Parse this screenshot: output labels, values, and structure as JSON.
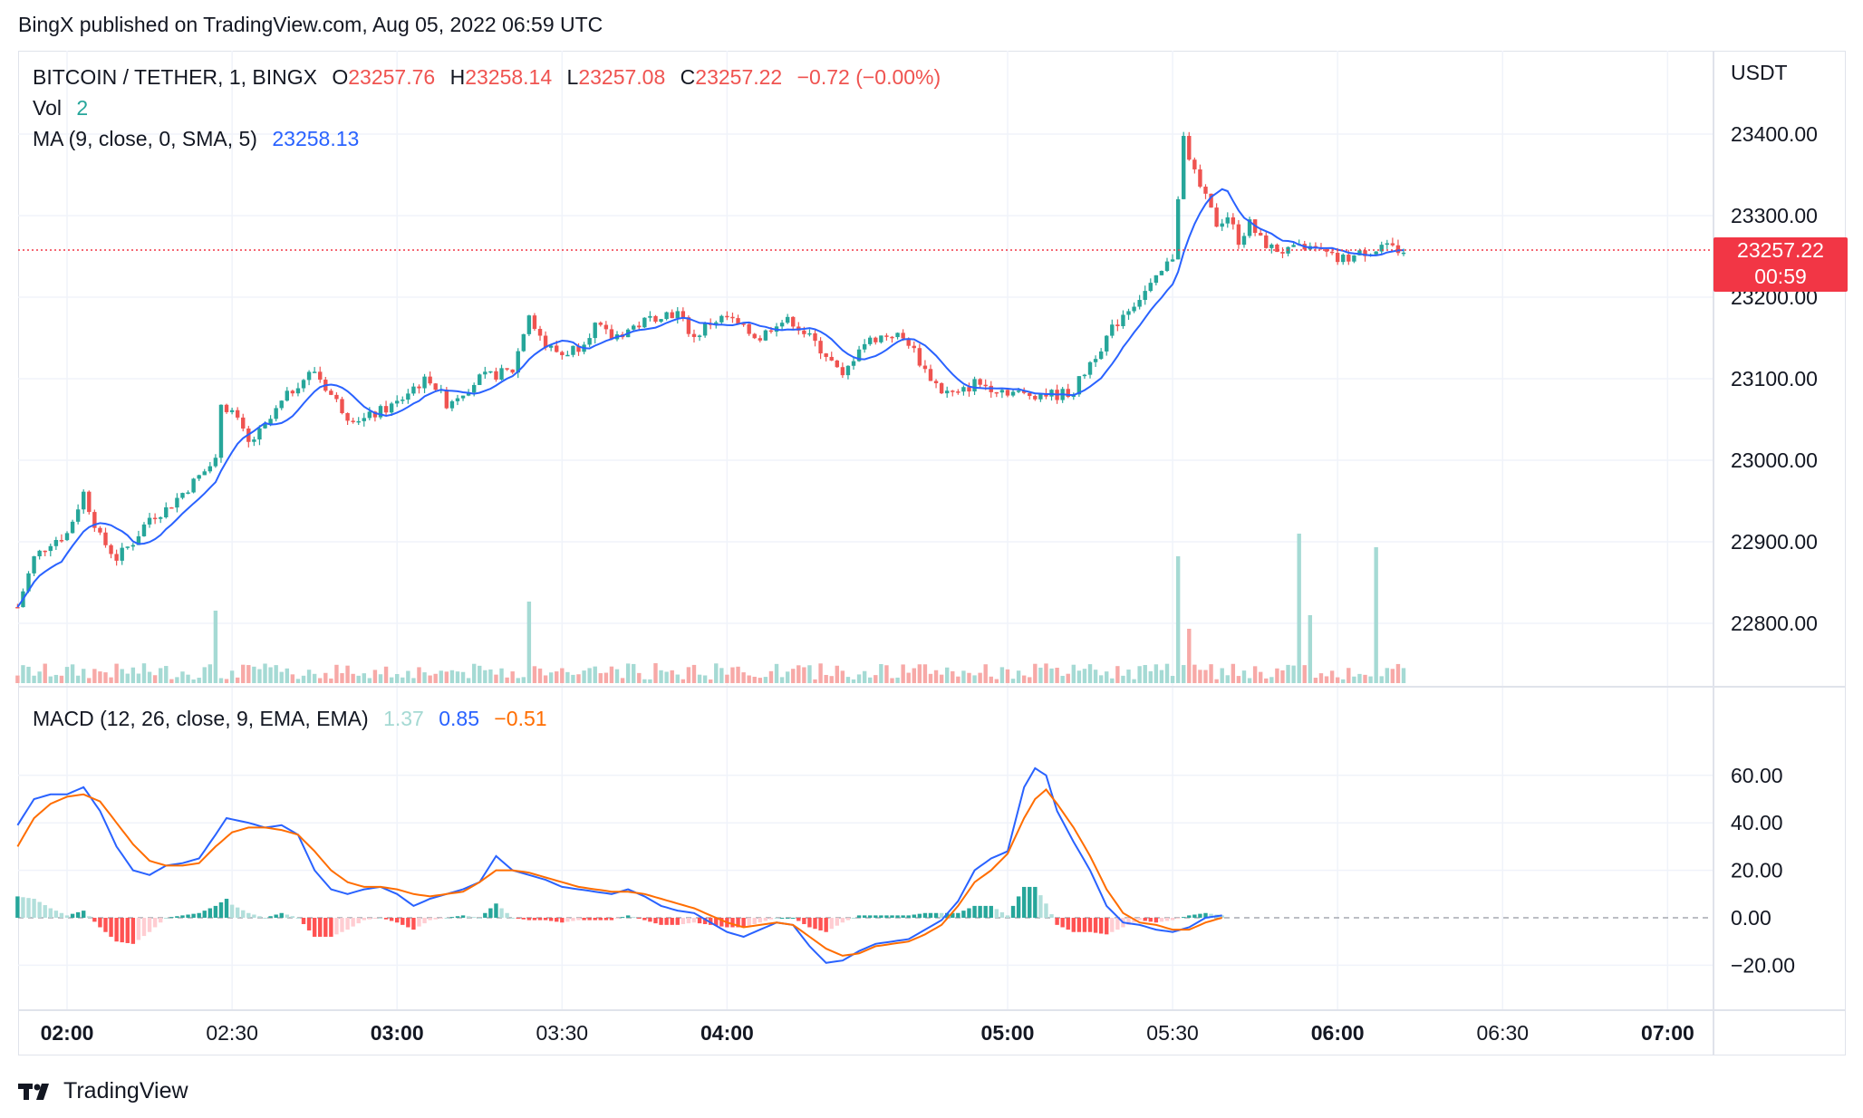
{
  "header": {
    "publisher_line": "BingX published on TradingView.com, Aug 05, 2022 06:59 UTC"
  },
  "legend": {
    "symbol": "BITCOIN / TETHER, 1, BINGX",
    "o_label": "O",
    "o_value": "23257.76",
    "h_label": "H",
    "h_value": "23258.14",
    "l_label": "L",
    "l_value": "23257.08",
    "c_label": "C",
    "c_value": "23257.22",
    "change": "−0.72 (−0.00%)",
    "vol_label": "Vol",
    "vol_value": "2",
    "ma_label": "MA (9, close, 0, SMA, 5)",
    "ma_value": "23258.13",
    "macd_label": "MACD (12, 26, close, 9, EMA, EMA)",
    "macd_hist": "1.37",
    "macd_line": "0.85",
    "macd_signal": "−0.51"
  },
  "price_axis": {
    "currency": "USDT",
    "ticks": [
      "23400.00",
      "23300.00",
      "23200.00",
      "23100.00",
      "23000.00",
      "22900.00",
      "22800.00"
    ],
    "last_price": "23257.22",
    "countdown": "00:59"
  },
  "macd_axis": {
    "ticks": [
      "60.00",
      "40.00",
      "20.00",
      "0.00",
      "−20.00"
    ]
  },
  "time_axis": {
    "ticks": [
      {
        "label": "02:00",
        "bold": true,
        "t": 0
      },
      {
        "label": "02:30",
        "bold": false,
        "t": 30
      },
      {
        "label": "03:00",
        "bold": true,
        "t": 60
      },
      {
        "label": "03:30",
        "bold": false,
        "t": 90
      },
      {
        "label": "04:00",
        "bold": true,
        "t": 120
      },
      {
        "label": "05:00",
        "bold": true,
        "t": 171
      },
      {
        "label": "05:30",
        "bold": false,
        "t": 201
      },
      {
        "label": "06:00",
        "bold": true,
        "t": 231
      },
      {
        "label": "06:30",
        "bold": false,
        "t": 261
      },
      {
        "label": "07:00",
        "bold": true,
        "t": 291
      }
    ]
  },
  "footer": {
    "brand": "TradingView"
  },
  "colors": {
    "up": "#26a69a",
    "down": "#ef5350",
    "ma": "#2962ff",
    "macd": "#2962ff",
    "signal": "#ff6d00",
    "last": "#f23645"
  },
  "chart_data": {
    "type": "candlestick",
    "title": "BITCOIN / TETHER, 1, BINGX",
    "ylabel": "USDT",
    "ylim": [
      22730,
      23470
    ],
    "price_keypoints": [
      [
        -9,
        22820
      ],
      [
        -6,
        22880
      ],
      [
        -3,
        22900
      ],
      [
        0,
        22910
      ],
      [
        3,
        22960
      ],
      [
        6,
        22905
      ],
      [
        9,
        22880
      ],
      [
        12,
        22900
      ],
      [
        15,
        22930
      ],
      [
        18,
        22940
      ],
      [
        21,
        22960
      ],
      [
        24,
        22980
      ],
      [
        27,
        23000
      ],
      [
        28,
        23070
      ],
      [
        30,
        23060
      ],
      [
        33,
        23020
      ],
      [
        36,
        23040
      ],
      [
        39,
        23070
      ],
      [
        42,
        23095
      ],
      [
        45,
        23110
      ],
      [
        48,
        23080
      ],
      [
        51,
        23055
      ],
      [
        54,
        23050
      ],
      [
        57,
        23060
      ],
      [
        60,
        23070
      ],
      [
        63,
        23090
      ],
      [
        66,
        23100
      ],
      [
        69,
        23070
      ],
      [
        72,
        23085
      ],
      [
        75,
        23100
      ],
      [
        78,
        23105
      ],
      [
        81,
        23110
      ],
      [
        84,
        23180
      ],
      [
        87,
        23140
      ],
      [
        90,
        23130
      ],
      [
        93,
        23140
      ],
      [
        96,
        23165
      ],
      [
        99,
        23150
      ],
      [
        102,
        23160
      ],
      [
        105,
        23170
      ],
      [
        108,
        23180
      ],
      [
        111,
        23180
      ],
      [
        114,
        23150
      ],
      [
        117,
        23170
      ],
      [
        120,
        23175
      ],
      [
        123,
        23160
      ],
      [
        126,
        23150
      ],
      [
        129,
        23170
      ],
      [
        132,
        23170
      ],
      [
        135,
        23150
      ],
      [
        138,
        23130
      ],
      [
        141,
        23100
      ],
      [
        144,
        23140
      ],
      [
        147,
        23150
      ],
      [
        150,
        23155
      ],
      [
        153,
        23145
      ],
      [
        156,
        23110
      ],
      [
        159,
        23085
      ],
      [
        162,
        23080
      ],
      [
        165,
        23095
      ],
      [
        168,
        23090
      ],
      [
        171,
        23085
      ],
      [
        174,
        23080
      ],
      [
        177,
        23082
      ],
      [
        180,
        23080
      ],
      [
        183,
        23085
      ],
      [
        186,
        23120
      ],
      [
        189,
        23150
      ],
      [
        192,
        23180
      ],
      [
        195,
        23200
      ],
      [
        198,
        23220
      ],
      [
        201,
        23250
      ],
      [
        203,
        23400
      ],
      [
        205,
        23350
      ],
      [
        207,
        23320
      ],
      [
        209,
        23290
      ],
      [
        211,
        23300
      ],
      [
        213,
        23270
      ],
      [
        215,
        23290
      ],
      [
        217,
        23270
      ],
      [
        219,
        23260
      ],
      [
        222,
        23255
      ],
      [
        225,
        23262
      ],
      [
        228,
        23255
      ],
      [
        231,
        23245
      ],
      [
        234,
        23250
      ],
      [
        237,
        23258
      ],
      [
        240,
        23260
      ],
      [
        243,
        23257
      ]
    ],
    "volume_spikes": [
      [
        27,
        80
      ],
      [
        84,
        90
      ],
      [
        202,
        140
      ],
      [
        204,
        60
      ],
      [
        224,
        165
      ],
      [
        226,
        75
      ],
      [
        238,
        150
      ]
    ],
    "macd_keypoints": [
      [
        -9,
        39
      ],
      [
        -6,
        50
      ],
      [
        -3,
        52
      ],
      [
        0,
        52
      ],
      [
        3,
        55
      ],
      [
        6,
        45
      ],
      [
        9,
        30
      ],
      [
        12,
        20
      ],
      [
        15,
        18
      ],
      [
        18,
        22
      ],
      [
        21,
        23
      ],
      [
        24,
        25
      ],
      [
        27,
        35
      ],
      [
        29,
        42
      ],
      [
        33,
        40
      ],
      [
        36,
        38
      ],
      [
        39,
        39
      ],
      [
        42,
        35
      ],
      [
        45,
        20
      ],
      [
        48,
        12
      ],
      [
        51,
        10
      ],
      [
        54,
        12
      ],
      [
        57,
        13
      ],
      [
        60,
        10
      ],
      [
        63,
        5
      ],
      [
        66,
        8
      ],
      [
        69,
        10
      ],
      [
        72,
        12
      ],
      [
        75,
        15
      ],
      [
        78,
        26
      ],
      [
        81,
        20
      ],
      [
        84,
        18
      ],
      [
        87,
        16
      ],
      [
        90,
        13
      ],
      [
        93,
        12
      ],
      [
        96,
        11
      ],
      [
        99,
        10
      ],
      [
        102,
        12
      ],
      [
        105,
        9
      ],
      [
        108,
        5
      ],
      [
        111,
        3
      ],
      [
        114,
        2
      ],
      [
        117,
        -2
      ],
      [
        120,
        -6
      ],
      [
        123,
        -8
      ],
      [
        126,
        -5
      ],
      [
        129,
        -2
      ],
      [
        132,
        -3
      ],
      [
        135,
        -12
      ],
      [
        138,
        -19
      ],
      [
        141,
        -18
      ],
      [
        144,
        -14
      ],
      [
        147,
        -11
      ],
      [
        150,
        -10
      ],
      [
        153,
        -9
      ],
      [
        156,
        -5
      ],
      [
        159,
        -1
      ],
      [
        162,
        7
      ],
      [
        165,
        20
      ],
      [
        168,
        25
      ],
      [
        171,
        28
      ],
      [
        174,
        55
      ],
      [
        176,
        63
      ],
      [
        178,
        60
      ],
      [
        180,
        45
      ],
      [
        183,
        32
      ],
      [
        186,
        20
      ],
      [
        189,
        5
      ],
      [
        192,
        -2
      ],
      [
        195,
        -3
      ],
      [
        198,
        -5
      ],
      [
        201,
        -6
      ],
      [
        204,
        -4
      ],
      [
        207,
        0
      ],
      [
        210,
        1
      ]
    ],
    "signal_keypoints": [
      [
        -9,
        30
      ],
      [
        -6,
        42
      ],
      [
        -3,
        48
      ],
      [
        0,
        51
      ],
      [
        3,
        52
      ],
      [
        6,
        49
      ],
      [
        9,
        40
      ],
      [
        12,
        31
      ],
      [
        15,
        24
      ],
      [
        18,
        22
      ],
      [
        21,
        22
      ],
      [
        24,
        23
      ],
      [
        27,
        30
      ],
      [
        30,
        36
      ],
      [
        33,
        38
      ],
      [
        36,
        38
      ],
      [
        39,
        37
      ],
      [
        42,
        35
      ],
      [
        45,
        28
      ],
      [
        48,
        20
      ],
      [
        51,
        15
      ],
      [
        54,
        13
      ],
      [
        57,
        13
      ],
      [
        60,
        12
      ],
      [
        63,
        10
      ],
      [
        66,
        9
      ],
      [
        69,
        10
      ],
      [
        72,
        11
      ],
      [
        75,
        15
      ],
      [
        78,
        20
      ],
      [
        81,
        20
      ],
      [
        84,
        19
      ],
      [
        87,
        17
      ],
      [
        90,
        15
      ],
      [
        93,
        13
      ],
      [
        96,
        12
      ],
      [
        99,
        11
      ],
      [
        102,
        11
      ],
      [
        105,
        10
      ],
      [
        108,
        8
      ],
      [
        111,
        6
      ],
      [
        114,
        4
      ],
      [
        117,
        1
      ],
      [
        120,
        -2
      ],
      [
        123,
        -4
      ],
      [
        126,
        -3
      ],
      [
        129,
        -2
      ],
      [
        132,
        -3
      ],
      [
        135,
        -8
      ],
      [
        138,
        -13
      ],
      [
        141,
        -16
      ],
      [
        144,
        -15
      ],
      [
        147,
        -12
      ],
      [
        150,
        -11
      ],
      [
        153,
        -10
      ],
      [
        156,
        -7
      ],
      [
        159,
        -3
      ],
      [
        162,
        5
      ],
      [
        165,
        15
      ],
      [
        168,
        20
      ],
      [
        171,
        27
      ],
      [
        174,
        42
      ],
      [
        176,
        50
      ],
      [
        178,
        54
      ],
      [
        180,
        48
      ],
      [
        183,
        38
      ],
      [
        186,
        26
      ],
      [
        189,
        12
      ],
      [
        192,
        2
      ],
      [
        195,
        -2
      ],
      [
        198,
        -3
      ],
      [
        201,
        -5
      ],
      [
        204,
        -5
      ],
      [
        207,
        -2
      ],
      [
        210,
        0
      ]
    ]
  }
}
